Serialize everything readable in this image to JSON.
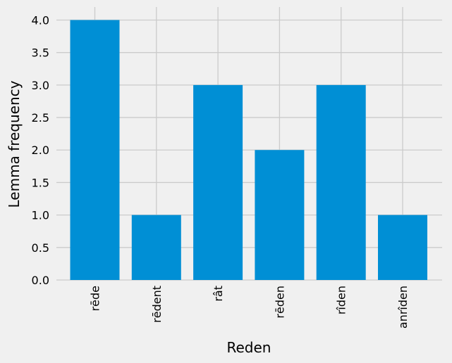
{
  "chart_data": {
    "type": "bar",
    "title": "",
    "xlabel": "Reden",
    "ylabel": "Lemma frequency",
    "categories": [
      "rēde",
      "rēdent",
      "rât",
      "rēden",
      "rîden",
      "anrîden"
    ],
    "values": [
      4,
      1,
      3,
      2,
      3,
      1
    ],
    "ylim": [
      0,
      4.2
    ],
    "yticks": [
      0.0,
      0.5,
      1.0,
      1.5,
      2.0,
      2.5,
      3.0,
      3.5,
      4.0
    ],
    "ytick_labels": [
      "0.0",
      "0.5",
      "1.0",
      "1.5",
      "2.0",
      "2.5",
      "3.0",
      "3.5",
      "4.0"
    ],
    "grid": true,
    "bar_color": "#008fd5",
    "background_color": "#f0f0f0",
    "grid_color": "#cbcbcb"
  }
}
